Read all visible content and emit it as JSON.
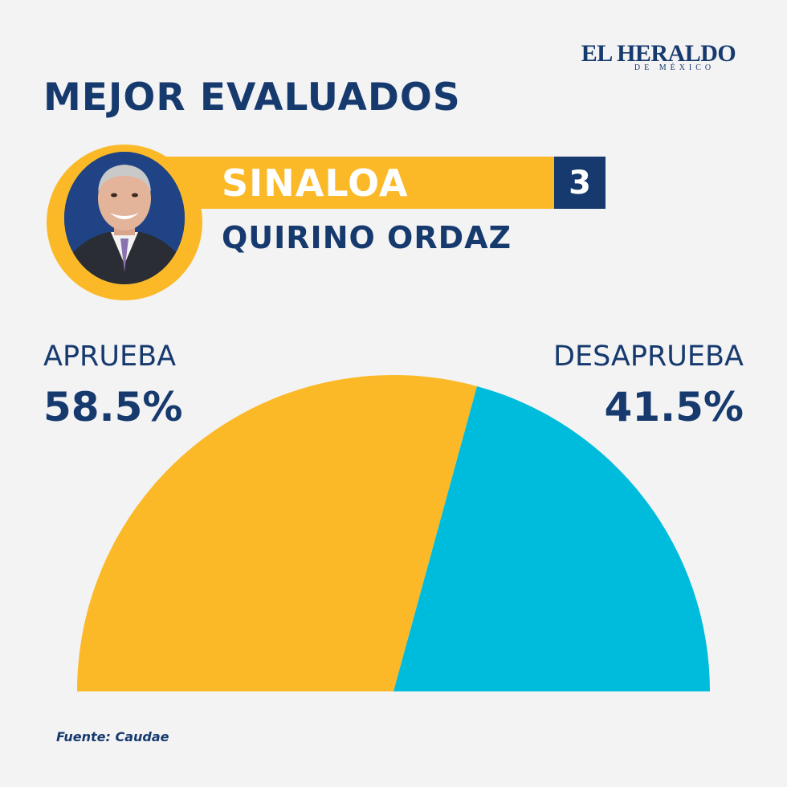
{
  "brand": {
    "name": "EL HERALDO",
    "sub": "DE MÉXICO"
  },
  "title": "MEJOR EVALUADOS",
  "profile": {
    "state": "SINALOA",
    "rank": "3",
    "person": "QUIRINO ORDAZ"
  },
  "chart_data": {
    "type": "pie",
    "layout": "semicircle",
    "unit": "%",
    "slices": [
      {
        "label": "APRUEBA",
        "value": 58.5,
        "display": "58.5%",
        "color": "#fbb928"
      },
      {
        "label": "DESAPRUEBA",
        "value": 41.5,
        "display": "41.5%",
        "color": "#00bcdc"
      }
    ]
  },
  "source": "Fuente: Caudae",
  "colors": {
    "navy": "#173a6e",
    "yellow": "#fbb928",
    "cyan": "#00bcdc",
    "background": "#f3f3f4"
  }
}
